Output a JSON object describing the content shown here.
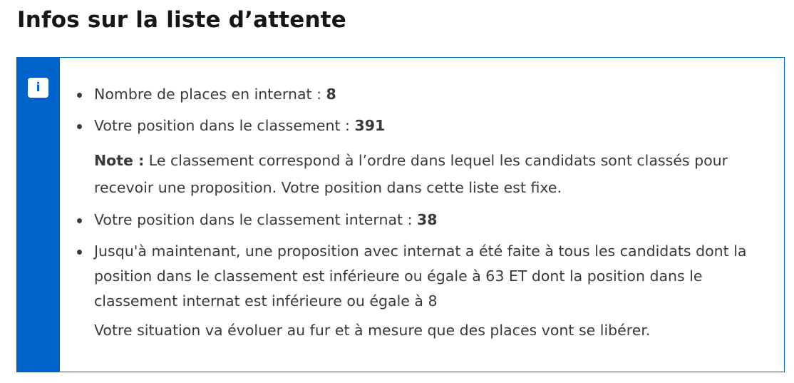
{
  "title": "Infos sur la liste d’attente",
  "info_icon": "info-icon",
  "accent_color": "#0063cb",
  "items": [
    {
      "label": "Nombre de places en internat : ",
      "value": "8"
    },
    {
      "label": "Votre position dans le classement : ",
      "value": "391",
      "note_label": "Note :",
      "note_text": " Le classement correspond à l’ordre dans lequel les candidats sont classés pour recevoir une proposition. Votre position dans cette liste est fixe."
    },
    {
      "label": "Votre position dans le classement internat : ",
      "value": "38"
    },
    {
      "label": "Jusqu'à maintenant, une proposition avec internat a été faite à tous les candidats dont la position dans le classement est inférieure ou égale à 63 ET dont la position dans le classement internat est inférieure ou égale à 8",
      "follow": "Votre situation va évoluer au fur et à mesure que des places vont se libérer."
    }
  ]
}
